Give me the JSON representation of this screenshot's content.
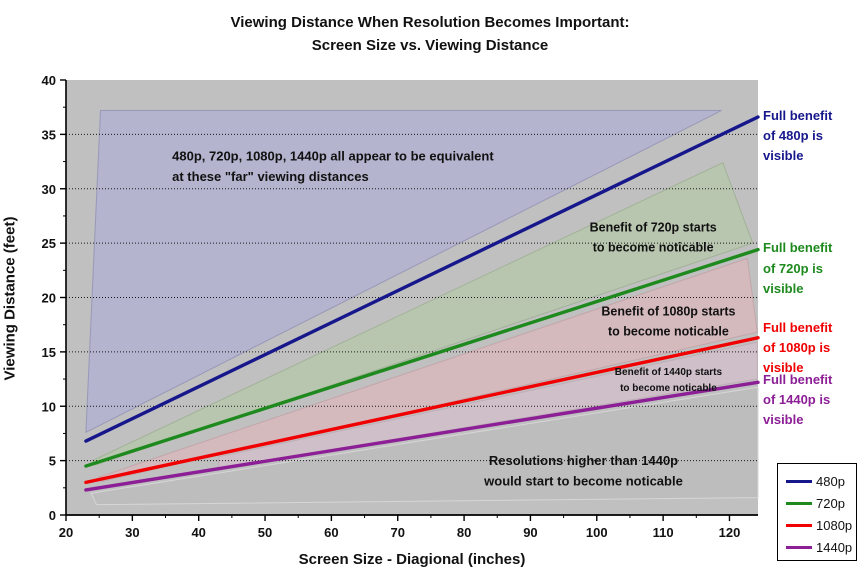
{
  "title": {
    "line1": "Viewing Distance When Resolution Becomes Important:",
    "line2": "Screen Size vs. Viewing Distance"
  },
  "axes": {
    "x_label": "Screen Size - Diagional (inches)",
    "y_label": "Viewing Distance (feet)",
    "x_ticks": [
      20,
      30,
      40,
      50,
      60,
      70,
      80,
      90,
      100,
      110,
      120
    ],
    "y_ticks": [
      0,
      5,
      10,
      15,
      20,
      25,
      30,
      35,
      40
    ],
    "grid_y": [
      5,
      10,
      15,
      20,
      25,
      30,
      35
    ]
  },
  "chart_data": {
    "type": "line",
    "title": "Viewing Distance When Resolution Becomes Important: Screen Size vs. Viewing Distance",
    "xlabel": "Screen Size - Diagional (inches)",
    "ylabel": "Viewing Distance (feet)",
    "xlim": [
      20,
      124.3
    ],
    "ylim": [
      0,
      40
    ],
    "grid": "horizontal-dotted",
    "plot_bg": "#C0C0C0",
    "legend_position": "outside-bottom-right",
    "series": [
      {
        "name": "480p",
        "color": "#17178C",
        "x": [
          23,
          124.3
        ],
        "y": [
          6.8,
          36.6
        ]
      },
      {
        "name": "720p",
        "color": "#1E8A1E",
        "x": [
          23,
          124.3
        ],
        "y": [
          4.5,
          24.4
        ]
      },
      {
        "name": "1080p",
        "color": "#F00000",
        "x": [
          23,
          124.3
        ],
        "y": [
          3.0,
          16.3
        ]
      },
      {
        "name": "1440p",
        "color": "#8C1E96",
        "x": [
          23,
          124.3
        ],
        "y": [
          2.3,
          12.2
        ]
      }
    ],
    "regions": [
      {
        "name": "region-equivalent",
        "fill": "#B4B4CF",
        "stroke": "#9898B8",
        "points": [
          [
            25.2,
            37.2
          ],
          [
            118.8,
            37.2
          ],
          [
            23,
            7.6
          ]
        ]
      },
      {
        "name": "region-720p-benefit",
        "fill": "#B8C5AF",
        "stroke": "#A2B298",
        "points": [
          [
            24,
            5.0
          ],
          [
            119,
            32.4
          ],
          [
            123.5,
            25.0
          ],
          [
            24.4,
            4.6
          ]
        ]
      },
      {
        "name": "region-1080p-benefit",
        "fill": "#D4B9BD",
        "stroke": "#C2A6AA",
        "points": [
          [
            25,
            3.5
          ],
          [
            122.7,
            23.6
          ],
          [
            124.2,
            16.8
          ],
          [
            25.4,
            3.1
          ]
        ]
      },
      {
        "name": "region-1440p-benefit",
        "fill": "#CFBFC8",
        "stroke": "#BFAEB8",
        "points": [
          [
            43,
            5.35
          ],
          [
            124.2,
            15.9
          ],
          [
            124.2,
            12.5
          ],
          [
            43,
            4.3
          ]
        ]
      },
      {
        "name": "region-above-1440p",
        "fill": "#BDBDBD",
        "stroke": "#D6D6D6",
        "points": [
          [
            23.8,
            2.0
          ],
          [
            124.3,
            11.75
          ],
          [
            124.3,
            1.6
          ],
          [
            24.6,
            0.95
          ]
        ]
      }
    ],
    "annotations": [
      {
        "name": "annotation-equivalent",
        "x": 36,
        "y": 33.8,
        "align": "start",
        "size": 13,
        "lines": [
          "480p, 720p, 1080p, 1440p all appear to be equivalent",
          "at these \"far\" viewing distances"
        ]
      },
      {
        "name": "annotation-720p-benefit",
        "x": 108.5,
        "y": 27.2,
        "align": "middle",
        "size": 12.5,
        "lines": [
          "Benefit of 720p starts",
          "to become noticable"
        ]
      },
      {
        "name": "annotation-1080p-benefit",
        "x": 110.8,
        "y": 19.5,
        "align": "middle",
        "size": 12.5,
        "lines": [
          "Benefit of 1080p starts",
          "to become noticable"
        ]
      },
      {
        "name": "annotation-1440p-benefit",
        "x": 110.8,
        "y": 13.8,
        "align": "middle",
        "size": 10,
        "lines": [
          "Benefit of 1440p starts",
          "to become noticable"
        ]
      },
      {
        "name": "annotation-above-1440p",
        "x": 98,
        "y": 5.8,
        "align": "middle",
        "size": 13,
        "lines": [
          "Resolutions higher than 1440p",
          "would start to become noticable"
        ]
      }
    ]
  },
  "right_labels": [
    {
      "text": "Full benefit\nof 480p is\nvisible",
      "color": "#17178C",
      "y_ft": 36.9
    },
    {
      "text": "Full benefit\nof 720p is\nvisible",
      "color": "#1E8A1E",
      "y_ft": 24.7
    },
    {
      "text": "Full benefit\nof 1080p is\nvisible",
      "color": "#F00000",
      "y_ft": 17.4
    },
    {
      "text": "Full benefit\nof 1440p is\nvisible",
      "color": "#8C1E96",
      "y_ft": 12.6
    }
  ],
  "legend": {
    "items": [
      {
        "label": "480p",
        "color": "#17178C"
      },
      {
        "label": "720p",
        "color": "#1E8A1E"
      },
      {
        "label": "1080p",
        "color": "#F00000"
      },
      {
        "label": "1440p",
        "color": "#8C1E96"
      }
    ]
  }
}
